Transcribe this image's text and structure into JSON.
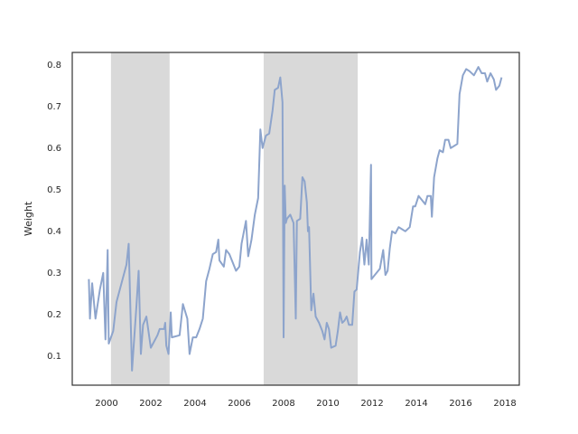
{
  "chart_data": {
    "type": "line",
    "ylabel": "Weight",
    "color": "#8da4cc",
    "grid": false,
    "shaded": [
      [
        2000.2,
        2002.85
      ],
      [
        2007.1,
        2011.35
      ]
    ],
    "shade_color": "#d9d9d9",
    "xlim": [
      1998.45,
      2018.65
    ],
    "xticks": [
      2000,
      2002,
      2004,
      2006,
      2008,
      2010,
      2012,
      2014,
      2016,
      2018
    ],
    "ylim": [
      0.03,
      0.83
    ],
    "yticks": [
      0.1,
      0.2,
      0.3,
      0.4,
      0.5,
      0.6,
      0.7,
      0.8
    ],
    "x": [
      1999.2,
      1999.25,
      1999.35,
      1999.5,
      1999.7,
      1999.85,
      1999.95,
      2000.05,
      2000.1,
      2000.3,
      2000.45,
      2000.9,
      2001.0,
      2001.15,
      2001.35,
      2001.45,
      2001.55,
      2001.65,
      2001.8,
      2002.0,
      2002.3,
      2002.4,
      2002.6,
      2002.65,
      2002.7,
      2002.8,
      2002.9,
      2002.95,
      2003.3,
      2003.45,
      2003.65,
      2003.75,
      2003.9,
      2004.05,
      2004.2,
      2004.35,
      2004.5,
      2004.65,
      2004.8,
      2004.95,
      2005.05,
      2005.1,
      2005.3,
      2005.4,
      2005.55,
      2005.7,
      2005.85,
      2006.0,
      2006.1,
      2006.3,
      2006.4,
      2006.55,
      2006.7,
      2006.85,
      2006.95,
      2007.05,
      2007.2,
      2007.35,
      2007.5,
      2007.6,
      2007.75,
      2007.85,
      2007.95,
      2008.0,
      2008.05,
      2008.1,
      2008.15,
      2008.3,
      2008.45,
      2008.55,
      2008.6,
      2008.75,
      2008.85,
      2008.95,
      2009.05,
      2009.1,
      2009.15,
      2009.25,
      2009.35,
      2009.45,
      2009.6,
      2009.75,
      2009.85,
      2009.95,
      2010.05,
      2010.15,
      2010.35,
      2010.45,
      2010.55,
      2010.65,
      2010.75,
      2010.85,
      2010.95,
      2011.1,
      2011.2,
      2011.3,
      2011.45,
      2011.55,
      2011.65,
      2011.75,
      2011.85,
      2011.95,
      2011.97,
      2012.2,
      2012.35,
      2012.5,
      2012.6,
      2012.7,
      2012.8,
      2012.9,
      2013.05,
      2013.2,
      2013.35,
      2013.5,
      2013.7,
      2013.85,
      2013.95,
      2014.1,
      2014.25,
      2014.4,
      2014.5,
      2014.65,
      2014.7,
      2014.8,
      2014.95,
      2015.05,
      2015.2,
      2015.3,
      2015.45,
      2015.55,
      2015.7,
      2015.85,
      2015.95,
      2016.1,
      2016.25,
      2016.4,
      2016.6,
      2016.8,
      2016.95,
      2017.1,
      2017.2,
      2017.35,
      2017.5,
      2017.6,
      2017.75,
      2017.85
    ],
    "values": [
      0.285,
      0.19,
      0.275,
      0.19,
      0.26,
      0.3,
      0.14,
      0.355,
      0.13,
      0.16,
      0.23,
      0.32,
      0.37,
      0.065,
      0.22,
      0.305,
      0.105,
      0.175,
      0.195,
      0.12,
      0.15,
      0.165,
      0.165,
      0.18,
      0.125,
      0.105,
      0.205,
      0.145,
      0.15,
      0.225,
      0.19,
      0.105,
      0.145,
      0.145,
      0.165,
      0.19,
      0.28,
      0.31,
      0.345,
      0.35,
      0.38,
      0.33,
      0.315,
      0.355,
      0.345,
      0.325,
      0.305,
      0.315,
      0.37,
      0.425,
      0.34,
      0.38,
      0.44,
      0.48,
      0.645,
      0.6,
      0.63,
      0.635,
      0.69,
      0.74,
      0.745,
      0.77,
      0.71,
      0.145,
      0.51,
      0.42,
      0.43,
      0.44,
      0.42,
      0.19,
      0.425,
      0.43,
      0.53,
      0.52,
      0.47,
      0.4,
      0.41,
      0.21,
      0.25,
      0.195,
      0.18,
      0.16,
      0.14,
      0.18,
      0.165,
      0.12,
      0.125,
      0.16,
      0.205,
      0.18,
      0.185,
      0.195,
      0.175,
      0.175,
      0.255,
      0.26,
      0.35,
      0.385,
      0.32,
      0.38,
      0.32,
      0.56,
      0.285,
      0.3,
      0.31,
      0.355,
      0.295,
      0.305,
      0.36,
      0.4,
      0.395,
      0.41,
      0.405,
      0.4,
      0.41,
      0.46,
      0.46,
      0.485,
      0.475,
      0.465,
      0.485,
      0.485,
      0.435,
      0.53,
      0.575,
      0.595,
      0.59,
      0.62,
      0.62,
      0.6,
      0.605,
      0.61,
      0.73,
      0.775,
      0.79,
      0.785,
      0.775,
      0.795,
      0.78,
      0.78,
      0.76,
      0.78,
      0.765,
      0.74,
      0.75,
      0.77
    ]
  }
}
